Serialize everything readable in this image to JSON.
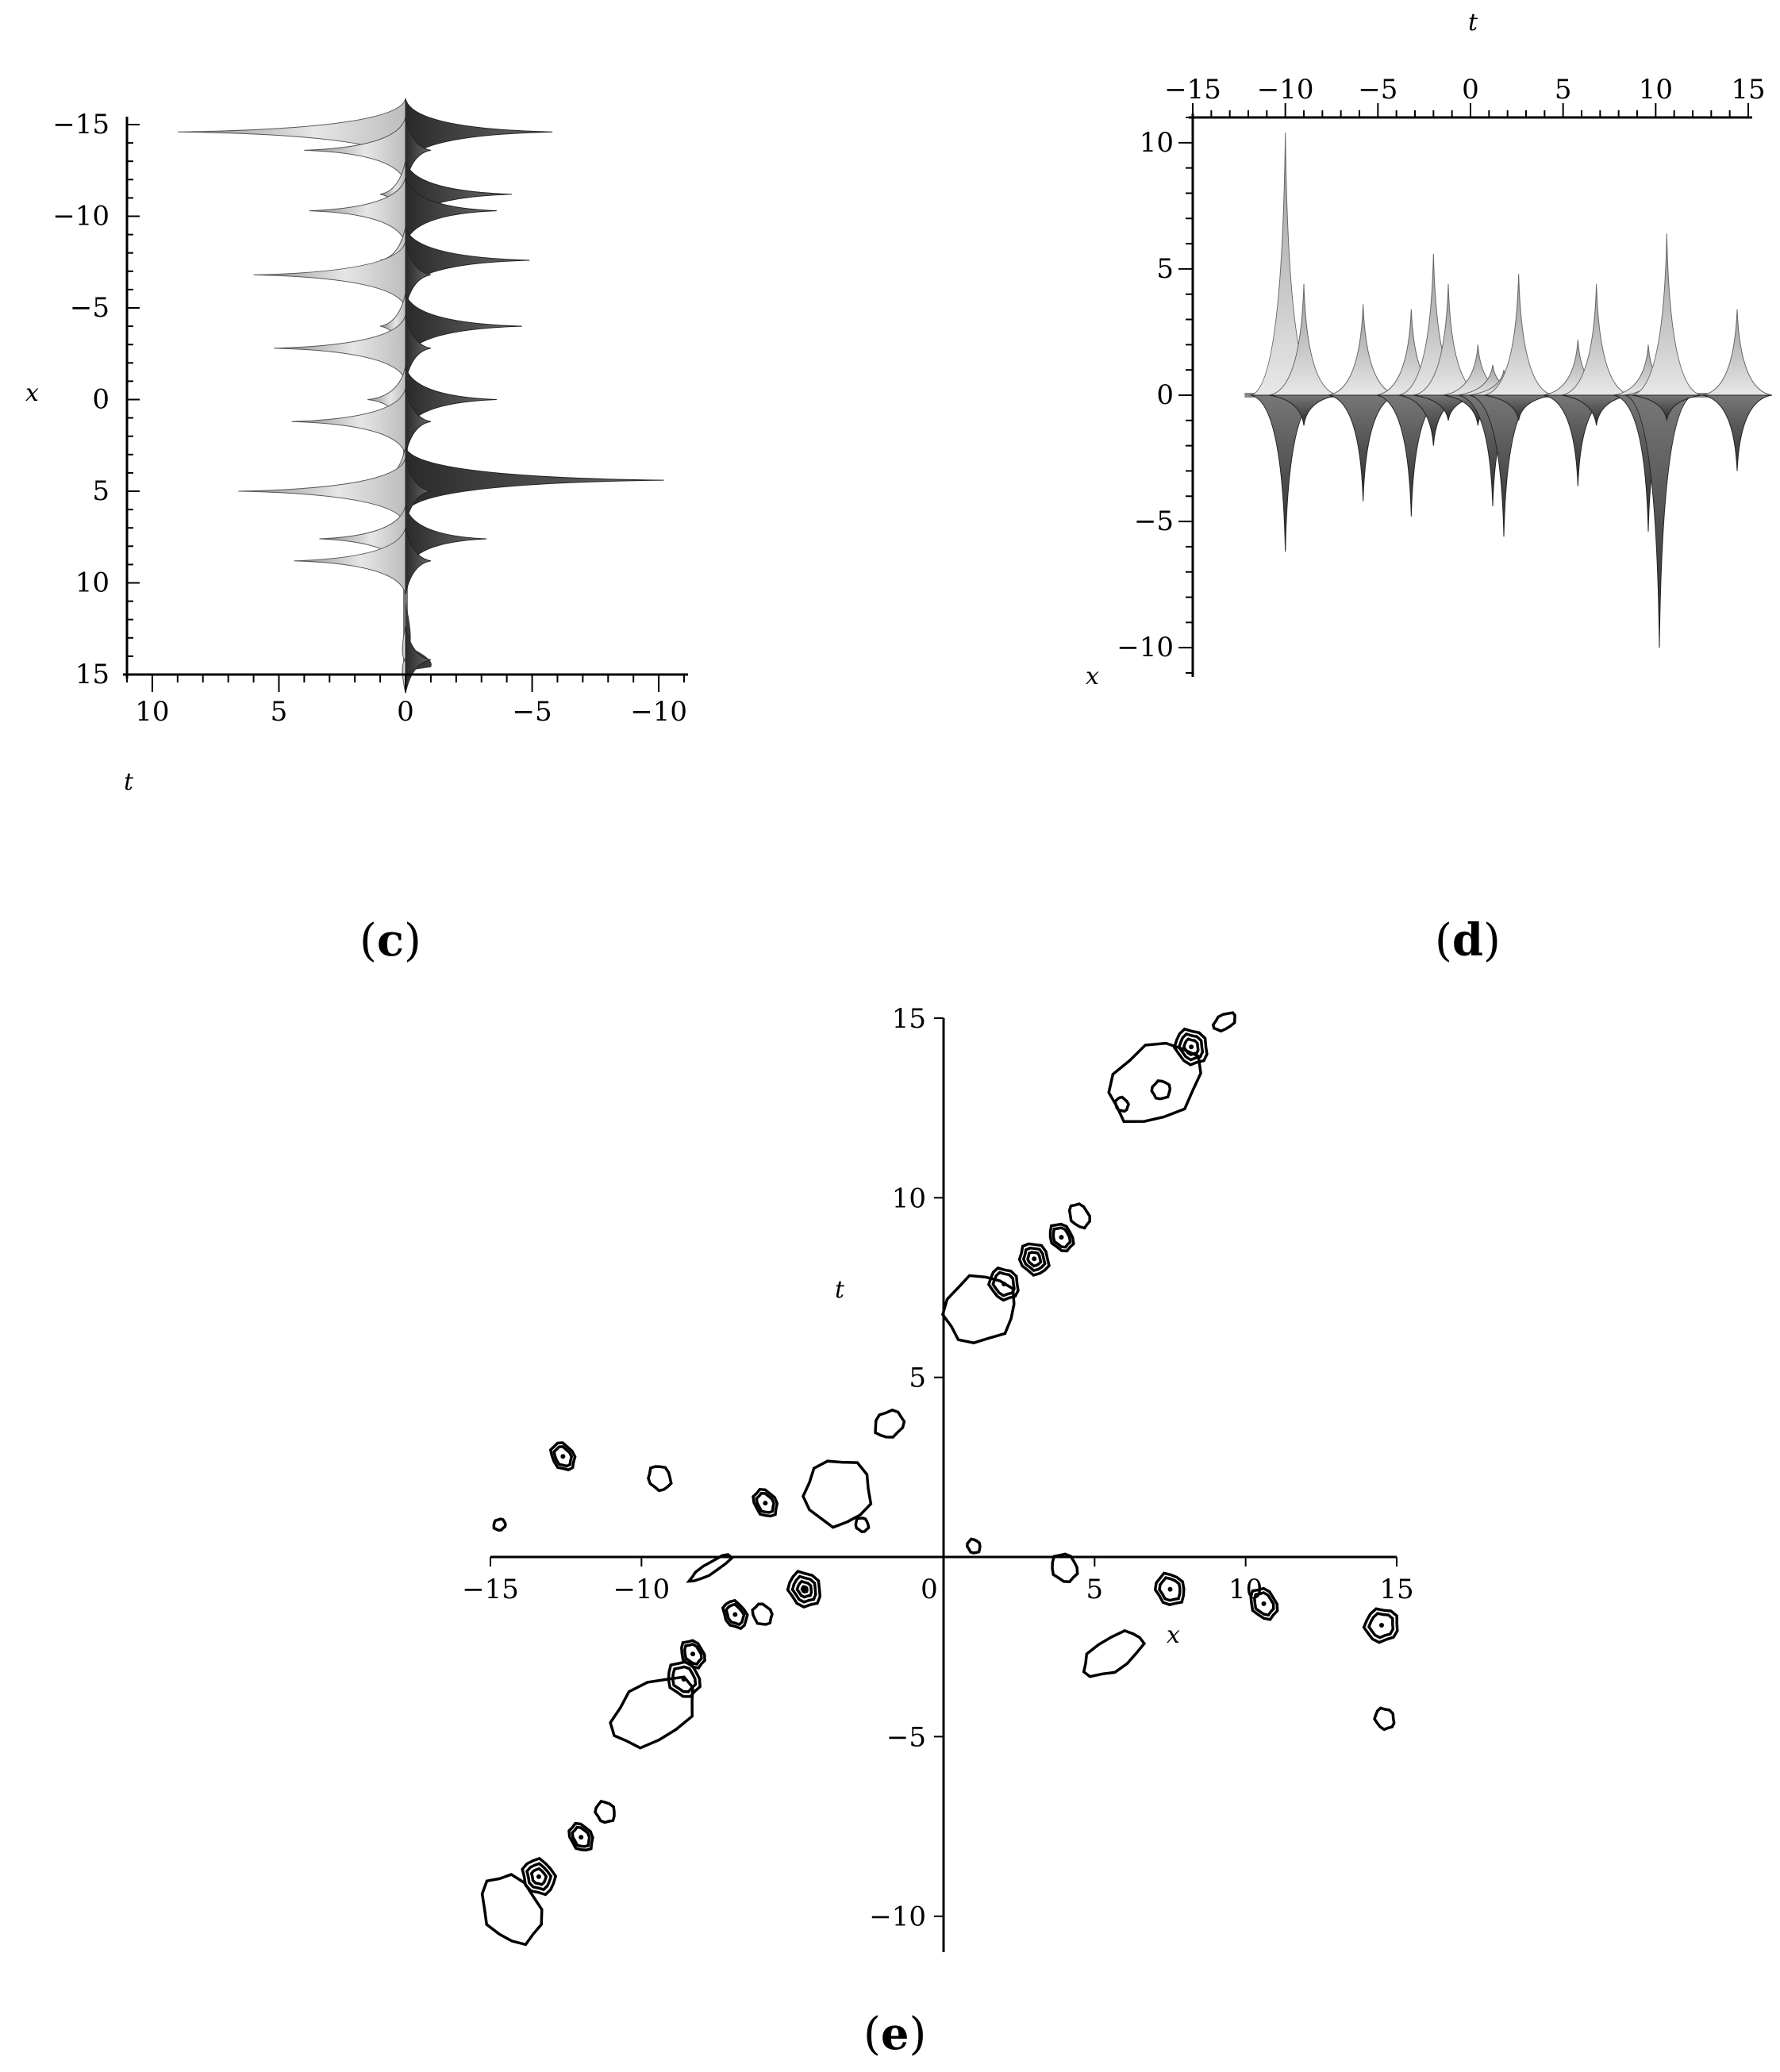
{
  "captions": {
    "c": "c",
    "d": "d",
    "e": "e"
  },
  "chart_data": [
    {
      "panel": "c",
      "type": "area",
      "description_free": true,
      "xlabel": "t",
      "ylabel": "x",
      "y_axis_label_side": "left",
      "x_axis_position": "bottom",
      "x_ticks": [
        "10",
        "5",
        "0",
        "−5",
        "−10"
      ],
      "y_ticks": [
        "−15",
        "−10",
        "−5",
        "0",
        "5",
        "10",
        "15"
      ],
      "xlim": [
        11,
        -11
      ],
      "ylim": [
        -15,
        15
      ],
      "colors": {
        "light": "#d9d9d9",
        "dark": "#3c3c3c"
      },
      "spikes": [
        {
          "x": -14.6,
          "t_left": 9.0,
          "t_right": -5.8
        },
        {
          "x": -13.6,
          "t_left": 4.0,
          "t_right": -1.0
        },
        {
          "x": -11.2,
          "t_left": 1.0,
          "t_right": -4.2
        },
        {
          "x": -10.3,
          "t_left": 3.8,
          "t_right": -3.6
        },
        {
          "x": -7.6,
          "t_left": 1.0,
          "t_right": -4.9
        },
        {
          "x": -6.8,
          "t_left": 6.0,
          "t_right": -1.0
        },
        {
          "x": -4.0,
          "t_left": 1.0,
          "t_right": -4.6
        },
        {
          "x": -2.8,
          "t_left": 5.2,
          "t_right": -1.0
        },
        {
          "x": 0.0,
          "t_left": 1.5,
          "t_right": -3.6
        },
        {
          "x": 1.2,
          "t_left": 4.5,
          "t_right": -1.0
        },
        {
          "x": 4.4,
          "t_left": 1.0,
          "t_right": -10.2
        },
        {
          "x": 5.0,
          "t_left": 6.6,
          "t_right": -1.0
        },
        {
          "x": 7.6,
          "t_left": 3.4,
          "t_right": -3.2
        },
        {
          "x": 8.8,
          "t_left": 4.4,
          "t_right": -1.0
        },
        {
          "x": 14.2,
          "t_left": 0.0,
          "t_right": -1.0
        }
      ]
    },
    {
      "panel": "d",
      "type": "area",
      "xlabel": "t",
      "ylabel": "x",
      "x_axis_position": "top",
      "x_ticks": [
        "−15",
        "−10",
        "−5",
        "0",
        "5",
        "10",
        "15"
      ],
      "y_ticks": [
        "10",
        "5",
        "0",
        "−5",
        "−10"
      ],
      "xlim": [
        -15,
        15
      ],
      "ylim": [
        -11,
        11
      ],
      "colors": {
        "light": "#d9d9d9",
        "dark": "#3c3c3c"
      },
      "spikes": [
        {
          "t": -10.0,
          "up": 10.4,
          "down": -6.2
        },
        {
          "t": -9.0,
          "up": 4.4,
          "down": -1.2
        },
        {
          "t": -5.8,
          "up": 3.6,
          "down": -4.2
        },
        {
          "t": -3.2,
          "up": 3.4,
          "down": -4.8
        },
        {
          "t": -2.0,
          "up": 5.6,
          "down": -2.0
        },
        {
          "t": -1.2,
          "up": 4.4,
          "down": -1.0
        },
        {
          "t": 0.4,
          "up": 2.0,
          "down": -1.2
        },
        {
          "t": 1.2,
          "up": 1.2,
          "down": -4.4
        },
        {
          "t": 1.8,
          "up": 1.0,
          "down": -5.6
        },
        {
          "t": 2.6,
          "up": 4.8,
          "down": -1.0
        },
        {
          "t": 5.8,
          "up": 2.2,
          "down": -3.6
        },
        {
          "t": 6.8,
          "up": 4.4,
          "down": -1.2
        },
        {
          "t": 9.6,
          "up": 2.0,
          "down": -5.4
        },
        {
          "t": 10.2,
          "up": 1.2,
          "down": -10.0
        },
        {
          "t": 10.6,
          "up": 6.4,
          "down": -1.0
        },
        {
          "t": 14.4,
          "up": 3.4,
          "down": -3.0
        }
      ]
    },
    {
      "panel": "e",
      "type": "contour",
      "xlabel": "x",
      "ylabel": "t",
      "x_ticks": [
        "−15",
        "−10",
        "5",
        "10",
        "15"
      ],
      "x_zero_label": "0",
      "y_ticks": [
        "15",
        "10",
        "5",
        "−5",
        "−10"
      ],
      "xlim": [
        -15,
        15
      ],
      "ylim": [
        -11,
        15
      ],
      "blobs": [
        {
          "x": 8.2,
          "t": 14.2,
          "rx": 0.5,
          "ry": 0.5,
          "levels": 3
        },
        {
          "x": 7.0,
          "t": 13.2,
          "rx": 1.6,
          "ry": 1.0,
          "levels": 1
        },
        {
          "x": 9.3,
          "t": 14.9,
          "rx": 0.4,
          "ry": 0.2,
          "levels": 1
        },
        {
          "x": 7.2,
          "t": 13.0,
          "rx": 0.3,
          "ry": 0.25,
          "levels": 1
        },
        {
          "x": 5.9,
          "t": 12.6,
          "rx": 0.2,
          "ry": 0.2,
          "levels": 1
        },
        {
          "x": 3.0,
          "t": 8.3,
          "rx": 0.45,
          "ry": 0.45,
          "levels": 3
        },
        {
          "x": 2.0,
          "t": 7.6,
          "rx": 0.45,
          "ry": 0.45,
          "levels": 2
        },
        {
          "x": 3.9,
          "t": 8.9,
          "rx": 0.35,
          "ry": 0.4,
          "levels": 2
        },
        {
          "x": 4.5,
          "t": 9.5,
          "rx": 0.3,
          "ry": 0.35,
          "levels": 1
        },
        {
          "x": 1.2,
          "t": 6.9,
          "rx": 1.2,
          "ry": 0.9,
          "levels": 1
        },
        {
          "x": -1.8,
          "t": 3.7,
          "rx": 0.5,
          "ry": 0.35,
          "levels": 1
        },
        {
          "x": -3.5,
          "t": 1.8,
          "rx": 1.1,
          "ry": 0.9,
          "levels": 1
        },
        {
          "x": -2.7,
          "t": 0.9,
          "rx": 0.2,
          "ry": 0.2,
          "levels": 1
        },
        {
          "x": -12.6,
          "t": 2.8,
          "rx": 0.35,
          "ry": 0.4,
          "levels": 2
        },
        {
          "x": -9.4,
          "t": 2.2,
          "rx": 0.35,
          "ry": 0.35,
          "levels": 1
        },
        {
          "x": -5.9,
          "t": 1.5,
          "rx": 0.35,
          "ry": 0.4,
          "levels": 2
        },
        {
          "x": -14.7,
          "t": 0.9,
          "rx": 0.2,
          "ry": 0.15,
          "levels": 1
        },
        {
          "x": -7.7,
          "t": -0.3,
          "rx": 0.8,
          "ry": 0.15,
          "levels": 1
        },
        {
          "x": -4.6,
          "t": -0.9,
          "rx": 0.5,
          "ry": 0.5,
          "levels": 4
        },
        {
          "x": -6.9,
          "t": -1.6,
          "rx": 0.35,
          "ry": 0.4,
          "levels": 2
        },
        {
          "x": -6.0,
          "t": -1.6,
          "rx": 0.3,
          "ry": 0.3,
          "levels": 1
        },
        {
          "x": -8.3,
          "t": -2.7,
          "rx": 0.35,
          "ry": 0.4,
          "levels": 2
        },
        {
          "x": -8.6,
          "t": -3.4,
          "rx": 0.5,
          "ry": 0.5,
          "levels": 2
        },
        {
          "x": -9.6,
          "t": -4.3,
          "rx": 1.5,
          "ry": 0.8,
          "levels": 1
        },
        {
          "x": 1.0,
          "t": 0.3,
          "rx": 0.2,
          "ry": 0.2,
          "levels": 1
        },
        {
          "x": 4.0,
          "t": -0.3,
          "rx": 0.4,
          "ry": 0.4,
          "levels": 1
        },
        {
          "x": 7.5,
          "t": -0.9,
          "rx": 0.45,
          "ry": 0.45,
          "levels": 2
        },
        {
          "x": 10.6,
          "t": -1.3,
          "rx": 0.4,
          "ry": 0.45,
          "levels": 2
        },
        {
          "x": 14.5,
          "t": -1.9,
          "rx": 0.55,
          "ry": 0.45,
          "levels": 2
        },
        {
          "x": 5.6,
          "t": -2.7,
          "rx": 1.1,
          "ry": 0.45,
          "levels": 1
        },
        {
          "x": 14.6,
          "t": -4.5,
          "rx": 0.3,
          "ry": 0.3,
          "levels": 1
        },
        {
          "x": -13.4,
          "t": -8.9,
          "rx": 0.5,
          "ry": 0.5,
          "levels": 3
        },
        {
          "x": -12.0,
          "t": -7.8,
          "rx": 0.35,
          "ry": 0.4,
          "levels": 2
        },
        {
          "x": -11.2,
          "t": -7.1,
          "rx": 0.3,
          "ry": 0.3,
          "levels": 1
        },
        {
          "x": -14.3,
          "t": -9.8,
          "rx": 0.9,
          "ry": 1.0,
          "levels": 1
        }
      ]
    }
  ]
}
